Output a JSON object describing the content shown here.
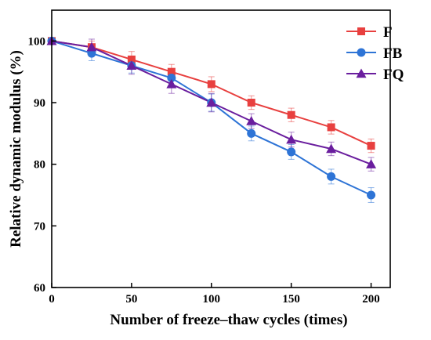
{
  "chart_data": {
    "type": "line",
    "title": "",
    "xlabel": "Number of freeze–thaw cycles (times)",
    "ylabel": "Relative dynamic modulus (%)",
    "xlim": [
      0,
      212
    ],
    "ylim": [
      60,
      105
    ],
    "x_ticks": [
      0,
      50,
      100,
      150,
      200
    ],
    "y_ticks": [
      60,
      70,
      80,
      90,
      100
    ],
    "x_tick_labels": [
      "0",
      "50",
      "100",
      "150",
      "200"
    ],
    "y_tick_labels": [
      "60",
      "70",
      "80",
      "90",
      "100"
    ],
    "x": [
      0,
      25,
      50,
      75,
      100,
      125,
      150,
      175,
      200
    ],
    "grid": false,
    "legend_position": "top-right",
    "series": [
      {
        "name": "F",
        "color": "#E8403F",
        "marker": "square",
        "values": [
          100,
          99,
          97,
          95,
          93,
          90,
          88,
          86,
          83
        ],
        "errors": [
          0,
          1.0,
          1.3,
          1.2,
          1.2,
          1.1,
          1.1,
          1.1,
          1.1
        ]
      },
      {
        "name": "FB",
        "color": "#2E74D6",
        "marker": "circle",
        "values": [
          100,
          98,
          96,
          94,
          90,
          85,
          82,
          78,
          75
        ],
        "errors": [
          0,
          1.2,
          1.2,
          1.4,
          1.4,
          1.2,
          1.2,
          1.2,
          1.2
        ]
      },
      {
        "name": "FQ",
        "color": "#6A1E9E",
        "marker": "triangle",
        "values": [
          100,
          99,
          96,
          93,
          90,
          87,
          84,
          82.5,
          80
        ],
        "errors": [
          0,
          1.3,
          1.4,
          1.5,
          1.5,
          1.2,
          1.2,
          1.1,
          1.1
        ]
      }
    ]
  }
}
